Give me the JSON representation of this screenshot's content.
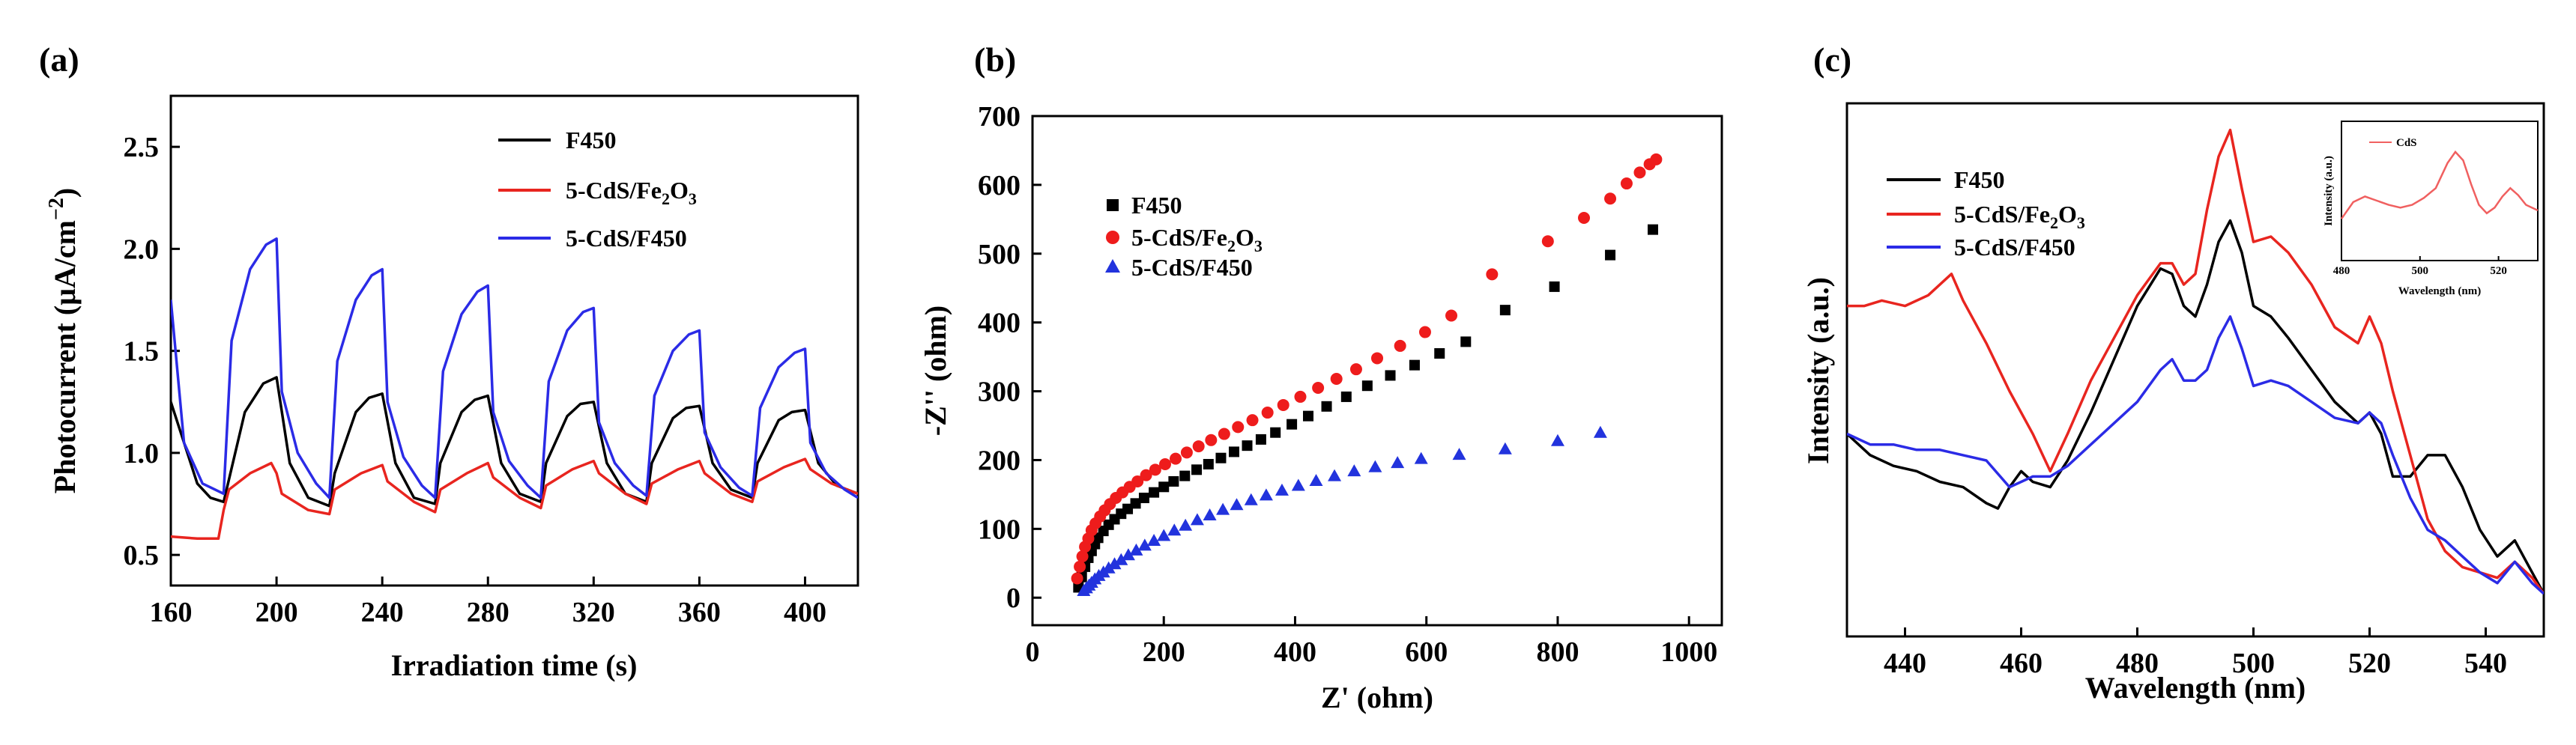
{
  "chart_data": [
    {
      "id": "a",
      "panel_label": "(a)",
      "type": "line",
      "xlabel": "Irradiation time (s)",
      "ylabel": "Photocurrent (μA/cm",
      "ylabel_sup": "−2",
      "ylabel_close": ")",
      "xlim": [
        160,
        420
      ],
      "ylim": [
        0.35,
        2.75
      ],
      "xticks": [
        "160",
        "200",
        "240",
        "280",
        "320",
        "360",
        "400"
      ],
      "yticks": [
        "0.5",
        "1.0",
        "1.5",
        "2.0",
        "2.5"
      ],
      "series": [
        {
          "name": "F450",
          "color": "#000000",
          "x": [
            160,
            170,
            175,
            180,
            188,
            195,
            200,
            205,
            212,
            220,
            222,
            230,
            235,
            240,
            245,
            252,
            260,
            262,
            270,
            275,
            280,
            285,
            292,
            300,
            302,
            310,
            315,
            320,
            325,
            332,
            340,
            342,
            350,
            355,
            360,
            365,
            372,
            380,
            382,
            390,
            395,
            400,
            405,
            412,
            420
          ],
          "y": [
            1.25,
            0.85,
            0.78,
            0.76,
            1.2,
            1.34,
            1.37,
            0.95,
            0.78,
            0.74,
            0.9,
            1.2,
            1.27,
            1.29,
            0.95,
            0.78,
            0.75,
            0.95,
            1.2,
            1.26,
            1.28,
            0.95,
            0.8,
            0.76,
            0.95,
            1.18,
            1.24,
            1.25,
            0.95,
            0.8,
            0.76,
            0.95,
            1.17,
            1.22,
            1.23,
            0.95,
            0.82,
            0.78,
            0.95,
            1.16,
            1.2,
            1.21,
            0.95,
            0.84,
            0.8
          ]
        },
        {
          "name": "5-CdS/Fe2O3",
          "color": "#e8251f",
          "x": [
            160,
            170,
            178,
            180,
            182,
            190,
            198,
            200,
            202,
            212,
            220,
            222,
            232,
            240,
            242,
            252,
            260,
            262,
            272,
            280,
            282,
            292,
            300,
            302,
            312,
            320,
            322,
            332,
            340,
            342,
            352,
            360,
            362,
            372,
            380,
            382,
            392,
            400,
            402,
            410,
            420
          ],
          "y": [
            0.59,
            0.58,
            0.58,
            0.72,
            0.82,
            0.9,
            0.95,
            0.9,
            0.8,
            0.72,
            0.7,
            0.82,
            0.9,
            0.94,
            0.86,
            0.76,
            0.71,
            0.82,
            0.9,
            0.95,
            0.88,
            0.78,
            0.73,
            0.84,
            0.92,
            0.96,
            0.9,
            0.8,
            0.75,
            0.85,
            0.92,
            0.96,
            0.9,
            0.8,
            0.76,
            0.86,
            0.93,
            0.97,
            0.92,
            0.85,
            0.8
          ]
        },
        {
          "name": "5-CdS/F450",
          "color": "#2b2be6",
          "x": [
            160,
            165,
            172,
            180,
            183,
            190,
            196,
            200,
            202,
            208,
            215,
            220,
            223,
            230,
            236,
            240,
            242,
            248,
            255,
            260,
            263,
            270,
            276,
            280,
            282,
            288,
            295,
            300,
            303,
            310,
            316,
            320,
            322,
            328,
            335,
            340,
            343,
            350,
            356,
            360,
            362,
            368,
            375,
            380,
            383,
            390,
            396,
            400,
            402,
            408,
            415,
            420
          ],
          "y": [
            1.75,
            1.05,
            0.85,
            0.8,
            1.55,
            1.9,
            2.02,
            2.05,
            1.3,
            1.0,
            0.85,
            0.78,
            1.45,
            1.75,
            1.87,
            1.9,
            1.25,
            0.98,
            0.84,
            0.78,
            1.4,
            1.68,
            1.79,
            1.82,
            1.2,
            0.96,
            0.84,
            0.78,
            1.35,
            1.6,
            1.69,
            1.71,
            1.15,
            0.95,
            0.84,
            0.79,
            1.28,
            1.5,
            1.58,
            1.6,
            1.1,
            0.93,
            0.83,
            0.79,
            1.22,
            1.42,
            1.49,
            1.51,
            1.05,
            0.9,
            0.82,
            0.78
          ]
        }
      ],
      "legend": [
        {
          "label": "F450",
          "sub": ""
        },
        {
          "label": "5-CdS/Fe",
          "sub": "2",
          "tail": "O",
          "sub2": "3"
        },
        {
          "label": "5-CdS/F450",
          "sub": ""
        }
      ]
    },
    {
      "id": "b",
      "panel_label": "(b)",
      "type": "scatter",
      "xlabel": "Z' (ohm)",
      "ylabel": "-Z'' (ohm)",
      "xlim": [
        0,
        1050
      ],
      "ylim": [
        -40,
        700
      ],
      "xticks": [
        "0",
        "200",
        "400",
        "600",
        "800",
        "1000"
      ],
      "yticks": [
        "0",
        "100",
        "200",
        "300",
        "400",
        "500",
        "600",
        "700"
      ],
      "series": [
        {
          "name": "F450",
          "color": "#000000",
          "marker": "square",
          "x": [
            70,
            75,
            80,
            85,
            90,
            95,
            100,
            108,
            116,
            125,
            135,
            145,
            157,
            170,
            185,
            200,
            215,
            232,
            250,
            268,
            287,
            307,
            327,
            348,
            370,
            395,
            420,
            448,
            478,
            510,
            545,
            582,
            620,
            660,
            720,
            795,
            880,
            945
          ],
          "y": [
            15,
            30,
            45,
            58,
            68,
            78,
            87,
            97,
            106,
            114,
            122,
            129,
            137,
            145,
            153,
            161,
            169,
            177,
            186,
            194,
            203,
            212,
            221,
            230,
            240,
            252,
            264,
            278,
            292,
            308,
            323,
            338,
            355,
            372,
            418,
            452,
            498,
            535
          ]
        },
        {
          "name": "5-CdS/Fe2O3",
          "color": "#ee1c1c",
          "marker": "circle",
          "x": [
            68,
            72,
            76,
            80,
            85,
            90,
            96,
            103,
            110,
            118,
            127,
            137,
            148,
            160,
            173,
            187,
            202,
            218,
            235,
            253,
            272,
            292,
            313,
            335,
            358,
            382,
            408,
            435,
            463,
            493,
            525,
            560,
            598,
            638,
            700,
            785,
            840,
            880,
            905,
            925,
            940,
            950
          ],
          "y": [
            28,
            45,
            60,
            74,
            86,
            98,
            108,
            118,
            127,
            136,
            145,
            153,
            161,
            169,
            178,
            186,
            194,
            202,
            211,
            220,
            229,
            238,
            248,
            258,
            269,
            280,
            292,
            305,
            318,
            332,
            348,
            366,
            386,
            410,
            470,
            518,
            552,
            580,
            602,
            618,
            630,
            637
          ]
        },
        {
          "name": "5-CdS/F450",
          "color": "#2233dd",
          "marker": "triangle",
          "x": [
            78,
            82,
            86,
            90,
            95,
            101,
            108,
            116,
            125,
            135,
            146,
            158,
            171,
            185,
            200,
            216,
            233,
            251,
            270,
            290,
            311,
            333,
            356,
            380,
            405,
            432,
            460,
            490,
            522,
            556,
            592,
            650,
            720,
            800,
            865
          ],
          "y": [
            10,
            14,
            18,
            22,
            27,
            32,
            37,
            43,
            49,
            55,
            62,
            69,
            76,
            83,
            90,
            98,
            105,
            113,
            120,
            128,
            135,
            142,
            149,
            156,
            163,
            170,
            177,
            184,
            190,
            196,
            202,
            208,
            216,
            228,
            240
          ]
        }
      ],
      "legend": [
        {
          "label": "F450",
          "sub": ""
        },
        {
          "label": "5-CdS/Fe",
          "sub": "2",
          "tail": "O",
          "sub2": "3"
        },
        {
          "label": "5-CdS/F450",
          "sub": ""
        }
      ]
    },
    {
      "id": "c",
      "panel_label": "(c)",
      "type": "line",
      "xlabel": "Wavelength (nm)",
      "ylabel": "Intensity (a.u.)",
      "xlim": [
        430,
        550
      ],
      "ylim": [
        0,
        1
      ],
      "xticks": [
        "440",
        "460",
        "480",
        "500",
        "520",
        "540"
      ],
      "yticks": [],
      "series": [
        {
          "name": "F450",
          "color": "#000000",
          "x": [
            430,
            434,
            438,
            442,
            446,
            450,
            454,
            456,
            458,
            460,
            462,
            465,
            468,
            472,
            476,
            480,
            484,
            486,
            488,
            490,
            492,
            494,
            496,
            498,
            500,
            503,
            506,
            510,
            514,
            518,
            520,
            522,
            524,
            527,
            530,
            533,
            536,
            539,
            542,
            545,
            548,
            550
          ],
          "y": [
            0.38,
            0.34,
            0.32,
            0.31,
            0.29,
            0.28,
            0.25,
            0.24,
            0.28,
            0.31,
            0.29,
            0.28,
            0.33,
            0.42,
            0.52,
            0.62,
            0.69,
            0.68,
            0.62,
            0.6,
            0.66,
            0.74,
            0.78,
            0.72,
            0.62,
            0.6,
            0.56,
            0.5,
            0.44,
            0.4,
            0.42,
            0.38,
            0.3,
            0.3,
            0.34,
            0.34,
            0.28,
            0.2,
            0.15,
            0.18,
            0.12,
            0.08
          ]
        },
        {
          "name": "5-CdS/Fe2O3",
          "color": "#e8251f",
          "x": [
            430,
            433,
            436,
            440,
            444,
            448,
            450,
            454,
            458,
            462,
            465,
            468,
            472,
            476,
            480,
            484,
            486,
            488,
            490,
            492,
            494,
            496,
            498,
            500,
            503,
            506,
            510,
            514,
            518,
            520,
            522,
            524,
            527,
            530,
            533,
            536,
            539,
            542,
            545,
            548,
            550
          ],
          "y": [
            0.62,
            0.62,
            0.63,
            0.62,
            0.64,
            0.68,
            0.63,
            0.55,
            0.46,
            0.38,
            0.31,
            0.38,
            0.48,
            0.56,
            0.64,
            0.7,
            0.7,
            0.66,
            0.68,
            0.8,
            0.9,
            0.95,
            0.84,
            0.74,
            0.75,
            0.72,
            0.66,
            0.58,
            0.55,
            0.6,
            0.55,
            0.46,
            0.34,
            0.22,
            0.16,
            0.13,
            0.12,
            0.11,
            0.14,
            0.11,
            0.08
          ]
        },
        {
          "name": "5-CdS/F450",
          "color": "#2b2be6",
          "x": [
            430,
            434,
            438,
            442,
            446,
            450,
            454,
            458,
            462,
            465,
            468,
            472,
            476,
            480,
            484,
            486,
            488,
            490,
            492,
            494,
            496,
            498,
            500,
            503,
            506,
            510,
            514,
            518,
            520,
            522,
            524,
            527,
            530,
            533,
            536,
            539,
            542,
            545,
            548,
            550
          ],
          "y": [
            0.38,
            0.36,
            0.36,
            0.35,
            0.35,
            0.34,
            0.33,
            0.28,
            0.3,
            0.3,
            0.32,
            0.36,
            0.4,
            0.44,
            0.5,
            0.52,
            0.48,
            0.48,
            0.5,
            0.56,
            0.6,
            0.54,
            0.47,
            0.48,
            0.47,
            0.44,
            0.41,
            0.4,
            0.42,
            0.4,
            0.34,
            0.26,
            0.2,
            0.18,
            0.15,
            0.12,
            0.1,
            0.14,
            0.1,
            0.08
          ]
        }
      ],
      "legend": [
        {
          "label": "F450",
          "sub": ""
        },
        {
          "label": "5-CdS/Fe",
          "sub": "2",
          "tail": "O",
          "sub2": "3"
        },
        {
          "label": "5-CdS/F450",
          "sub": ""
        }
      ],
      "inset": {
        "xlabel": "Wavelength (nm)",
        "ylabel": "Intensity (a.u.)",
        "xticks": [
          "480",
          "500",
          "520"
        ],
        "xlim": [
          480,
          530
        ],
        "legend": "CdS",
        "series": {
          "name": "CdS",
          "color": "#f06060",
          "x": [
            480,
            483,
            486,
            489,
            492,
            495,
            498,
            501,
            504,
            507,
            509,
            511,
            513,
            515,
            517,
            519,
            521,
            523,
            525,
            527,
            530
          ],
          "y": [
            0.3,
            0.42,
            0.46,
            0.43,
            0.4,
            0.38,
            0.4,
            0.45,
            0.52,
            0.7,
            0.78,
            0.72,
            0.55,
            0.4,
            0.34,
            0.38,
            0.46,
            0.52,
            0.47,
            0.4,
            0.36
          ]
        }
      }
    }
  ]
}
